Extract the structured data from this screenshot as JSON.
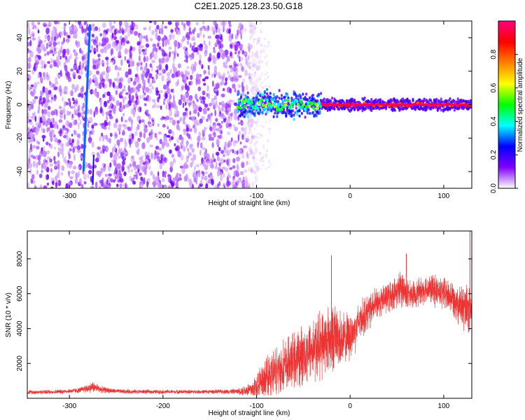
{
  "title": "C2E1.2025.128.23.50.G18",
  "chart_data": [
    {
      "type": "heatmap",
      "xlabel": "Height of straight line (km)",
      "ylabel": "Frequency (Hz)",
      "xlim": [
        -345,
        130
      ],
      "ylim": [
        -50,
        50
      ],
      "xticks": [
        -300,
        -200,
        -100,
        0,
        100
      ],
      "yticks": [
        -40,
        -20,
        0,
        20,
        40
      ],
      "colorbar": {
        "label": "Normalized spectral amplitude",
        "range": [
          0,
          1
        ],
        "ticks": [
          0.0,
          0.2,
          0.4,
          0.6,
          0.8
        ],
        "colors": [
          "#ffffff",
          "#8000ff",
          "#0000ff",
          "#00ffff",
          "#00ff00",
          "#ffff00",
          "#ff8000",
          "#ff0000",
          "#ff0080"
        ]
      },
      "features": [
        {
          "name": "noise-region",
          "x_range": [
            -345,
            -105
          ],
          "y_range": [
            -50,
            50
          ],
          "amplitude": 0.05
        },
        {
          "name": "carrier-line",
          "x_range": [
            -120,
            130
          ],
          "y_center": 0,
          "amplitude": 0.95
        },
        {
          "name": "diagonal-streak",
          "x_start": -285,
          "y_start": -40,
          "x_end": -278,
          "y_end": 48
        }
      ]
    },
    {
      "type": "line",
      "xlabel": "Height of straight line (km)",
      "ylabel": "SNR (10 * v/v)",
      "xlim": [
        -345,
        130
      ],
      "ylim": [
        0,
        9600
      ],
      "xticks": [
        -300,
        -200,
        -100,
        0,
        100
      ],
      "yticks": [
        2000,
        4000,
        6000,
        8000
      ],
      "color": "#ee3333",
      "x": [
        -345,
        -330,
        -310,
        -290,
        -275,
        -265,
        -250,
        -230,
        -200,
        -170,
        -140,
        -120,
        -105,
        -95,
        -85,
        -75,
        -65,
        -55,
        -45,
        -35,
        -25,
        -20,
        -15,
        -10,
        -5,
        0,
        5,
        10,
        20,
        30,
        40,
        50,
        55,
        60,
        65,
        70,
        80,
        90,
        100,
        110,
        115,
        120,
        125,
        130
      ],
      "values": [
        350,
        360,
        380,
        450,
        650,
        500,
        400,
        380,
        370,
        370,
        380,
        400,
        500,
        900,
        1300,
        1700,
        2000,
        2300,
        2700,
        3000,
        3300,
        3500,
        3600,
        3400,
        3300,
        3600,
        3900,
        4500,
        5000,
        5500,
        5800,
        6100,
        6400,
        6000,
        5900,
        6000,
        6300,
        6200,
        6000,
        5800,
        5500,
        5200,
        5000,
        4800
      ],
      "noise_amplitude": [
        100,
        100,
        100,
        120,
        250,
        150,
        100,
        100,
        90,
        90,
        100,
        120,
        400,
        900,
        1100,
        1200,
        1200,
        1300,
        1400,
        1500,
        1500,
        1600,
        1400,
        1300,
        1200,
        1100,
        1000,
        900,
        800,
        700,
        700,
        700,
        900,
        700,
        600,
        600,
        650,
        700,
        750,
        800,
        900,
        1000,
        1100,
        1100
      ],
      "annotations": [
        {
          "x": -20,
          "y": 8200
        },
        {
          "x": 128,
          "y": 9600
        },
        {
          "x": 60,
          "y": 8300
        }
      ]
    }
  ]
}
